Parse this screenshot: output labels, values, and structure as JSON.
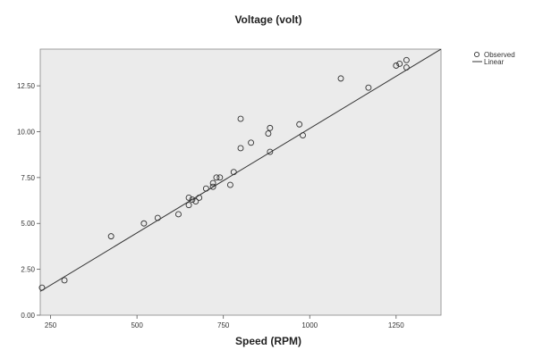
{
  "chart_data": {
    "type": "scatter",
    "title": "Voltage (volt)",
    "xlabel": "Speed (RPM)",
    "ylabel": "",
    "xlim": [
      220,
      1380
    ],
    "ylim": [
      0,
      14.5
    ],
    "x_ticks": [
      250,
      500,
      750,
      1000,
      1250
    ],
    "x_tick_labels": [
      "250",
      "500",
      "750",
      "1000",
      "1250"
    ],
    "y_ticks": [
      0,
      2.5,
      5,
      7.5,
      10,
      12.5
    ],
    "y_tick_labels": [
      "0.00",
      "2.50",
      "5.00",
      "7.50",
      "10.00",
      "12.50"
    ],
    "legend_placement": "top-right, outside plot",
    "plot_background": "#ebebeb",
    "series": [
      {
        "name": "Observed",
        "kind": "points",
        "color": "#333333",
        "x": [
          225,
          290,
          425,
          520,
          560,
          620,
          650,
          650,
          660,
          670,
          680,
          700,
          720,
          720,
          730,
          740,
          770,
          780,
          800,
          800,
          830,
          880,
          885,
          885,
          970,
          980,
          1090,
          1170,
          1250,
          1260,
          1280,
          1280
        ],
        "y": [
          1.5,
          1.9,
          4.3,
          5.0,
          5.3,
          5.5,
          6.0,
          6.4,
          6.3,
          6.2,
          6.4,
          6.9,
          7.0,
          7.2,
          7.5,
          7.5,
          7.1,
          7.8,
          9.1,
          10.7,
          9.4,
          9.9,
          10.2,
          8.9,
          10.4,
          9.8,
          12.9,
          12.4,
          13.6,
          13.7,
          13.5,
          13.9
        ]
      },
      {
        "name": "Linear",
        "kind": "line",
        "color": "#333333",
        "x": [
          220,
          1380
        ],
        "y": [
          1.3,
          14.5
        ]
      }
    ]
  }
}
